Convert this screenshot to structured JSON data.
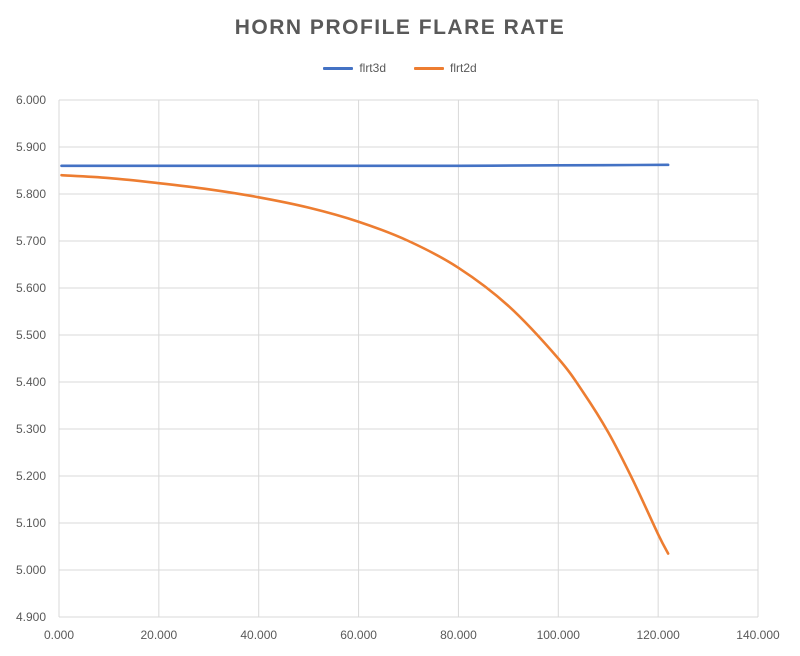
{
  "chart_data": {
    "type": "line",
    "title": "HORN PROFILE FLARE RATE",
    "xlabel": "",
    "ylabel": "",
    "xlim": [
      0,
      140
    ],
    "ylim": [
      4.9,
      6.0
    ],
    "x_ticks": [
      0,
      20,
      40,
      60,
      80,
      100,
      120,
      140
    ],
    "y_ticks": [
      4.9,
      5.0,
      5.1,
      5.2,
      5.3,
      5.4,
      5.5,
      5.6,
      5.7,
      5.8,
      5.9,
      6.0
    ],
    "x_tick_labels": [
      "0.000",
      "20.000",
      "40.000",
      "60.000",
      "80.000",
      "100.000",
      "120.000",
      "140.000"
    ],
    "y_tick_labels": [
      "4.900",
      "5.000",
      "5.100",
      "5.200",
      "5.300",
      "5.400",
      "5.500",
      "5.600",
      "5.700",
      "5.800",
      "5.900",
      "6.000"
    ],
    "grid": true,
    "legend_position": "top",
    "series": [
      {
        "name": "flrt3d",
        "color": "#4472C4",
        "x": [
          0.5,
          20,
          40,
          60,
          80,
          100,
          122
        ],
        "y": [
          5.86,
          5.86,
          5.86,
          5.86,
          5.86,
          5.861,
          5.862
        ]
      },
      {
        "name": "flrt2d",
        "color": "#ED7D31",
        "x": [
          0.5,
          10,
          20,
          30,
          40,
          50,
          60,
          70,
          80,
          90,
          100,
          105,
          110,
          115,
          120,
          122
        ],
        "y": [
          5.84,
          5.834,
          5.823,
          5.81,
          5.793,
          5.771,
          5.741,
          5.7,
          5.643,
          5.562,
          5.45,
          5.378,
          5.293,
          5.19,
          5.076,
          5.035
        ]
      }
    ]
  }
}
